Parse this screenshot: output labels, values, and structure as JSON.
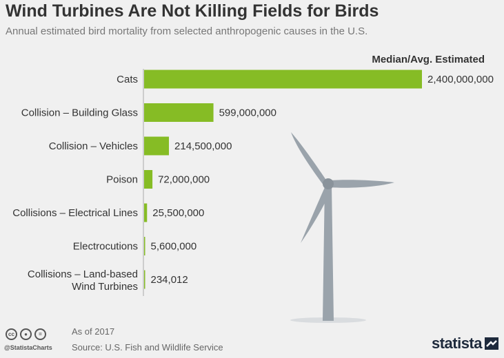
{
  "title": "Wind Turbines Are Not Killing Fields for Birds",
  "subtitle": "Annual estimated bird mortality from selected anthropogenic causes in the U.S.",
  "footer": {
    "date": "As of 2017",
    "source": "Source: U.S. Fish and Wildlife Service",
    "handle": "@StatistaCharts",
    "brand": "statista"
  },
  "colors": {
    "bar": "#86bc25",
    "turbine": "#9aa3ab",
    "background": "#f0f0f0"
  },
  "icons": [
    "creative-commons-icon",
    "attribution-icon",
    "no-derivatives-icon",
    "statista-logo-icon"
  ],
  "chart_data": {
    "type": "bar",
    "orientation": "horizontal",
    "series_header": "Median/Avg. Estimated",
    "categories": [
      "Cats",
      "Collision – Building Glass",
      "Collision – Vehicles",
      "Poison",
      "Collisions – Electrical Lines",
      "Electrocutions",
      "Collisions – Land-based Wind Turbines"
    ],
    "values": [
      2400000000,
      599000000,
      214500000,
      72000000,
      25500000,
      5600000,
      234012
    ],
    "value_labels": [
      "2,400,000,000",
      "599,000,000",
      "214,500,000",
      "72,000,000",
      "25,500,000",
      "5,600,000",
      "234,012"
    ],
    "xlim": [
      0,
      2400000000
    ],
    "grid": false,
    "legend": "none"
  }
}
